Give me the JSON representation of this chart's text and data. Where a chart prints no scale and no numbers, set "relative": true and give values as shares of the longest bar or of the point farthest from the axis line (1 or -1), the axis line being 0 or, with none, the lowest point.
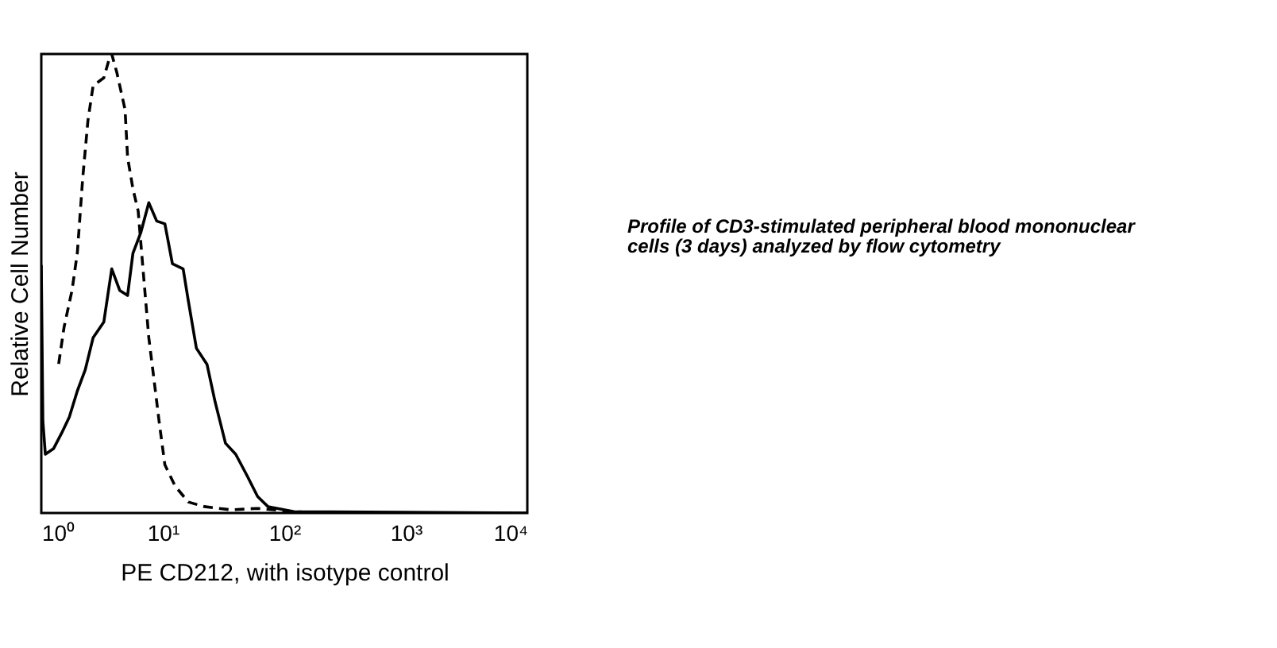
{
  "chart_data": {
    "type": "line",
    "relative": true,
    "log": "x",
    "xlabel": "PE CD212, with isotype control",
    "ylabel": "Relative Cell Number",
    "xlim": [
      1,
      10000
    ],
    "xticks": [
      {
        "value": 1,
        "label": "10⁰"
      },
      {
        "value": 10,
        "label": "10¹"
      },
      {
        "value": 100,
        "label": "10²"
      },
      {
        "value": 1000,
        "label": "10³"
      },
      {
        "value": 10000,
        "label": "10⁴"
      }
    ],
    "grid": false,
    "marker": "none",
    "annotations": [
      "Profile of CD3-stimulated peripheral blood mononuclear cells (3 days) analyzed by flow cytometry"
    ],
    "series": [
      {
        "color": "#000000",
        "line_style": "solid",
        "x": [
          1,
          1.03,
          1.08,
          1.26,
          1.47,
          1.7,
          1.98,
          2.3,
          2.67,
          3.27,
          3.8,
          4.42,
          5.13,
          5.68,
          6.61,
          7.67,
          8.91,
          10.4,
          12,
          14.7,
          16.2,
          18.9,
          23.1,
          26.9,
          32.8,
          39.8,
          49,
          60.3,
          73.3,
          120,
          10000
        ],
        "values": [
          0.54,
          0.2,
          0.128,
          0.14,
          0.174,
          0.209,
          0.266,
          0.312,
          0.382,
          0.416,
          0.532,
          0.485,
          0.474,
          0.566,
          0.612,
          0.676,
          0.636,
          0.63,
          0.543,
          0.532,
          0.463,
          0.359,
          0.324,
          0.243,
          0.152,
          0.128,
          0.083,
          0.036,
          0.014,
          0.003,
          0
        ]
      },
      {
        "color": "#000000",
        "line_style": "dashed",
        "x": [
          1.39,
          1.54,
          1.79,
          1.98,
          2.19,
          2.42,
          2.67,
          3.27,
          3.68,
          3.8,
          4.2,
          4.89,
          5.13,
          5.68,
          6.27,
          6.93,
          7.67,
          8.47,
          9.35,
          10.4,
          12.6,
          16.2,
          21.9,
          36.3,
          60.3,
          120,
          200
        ],
        "values": [
          0.325,
          0.405,
          0.485,
          0.567,
          0.728,
          0.855,
          0.931,
          0.948,
          0.996,
          1,
          0.958,
          0.879,
          0.775,
          0.706,
          0.658,
          0.52,
          0.382,
          0.29,
          0.197,
          0.105,
          0.059,
          0.024,
          0.014,
          0.007,
          0.01,
          0.003,
          0
        ]
      }
    ]
  }
}
